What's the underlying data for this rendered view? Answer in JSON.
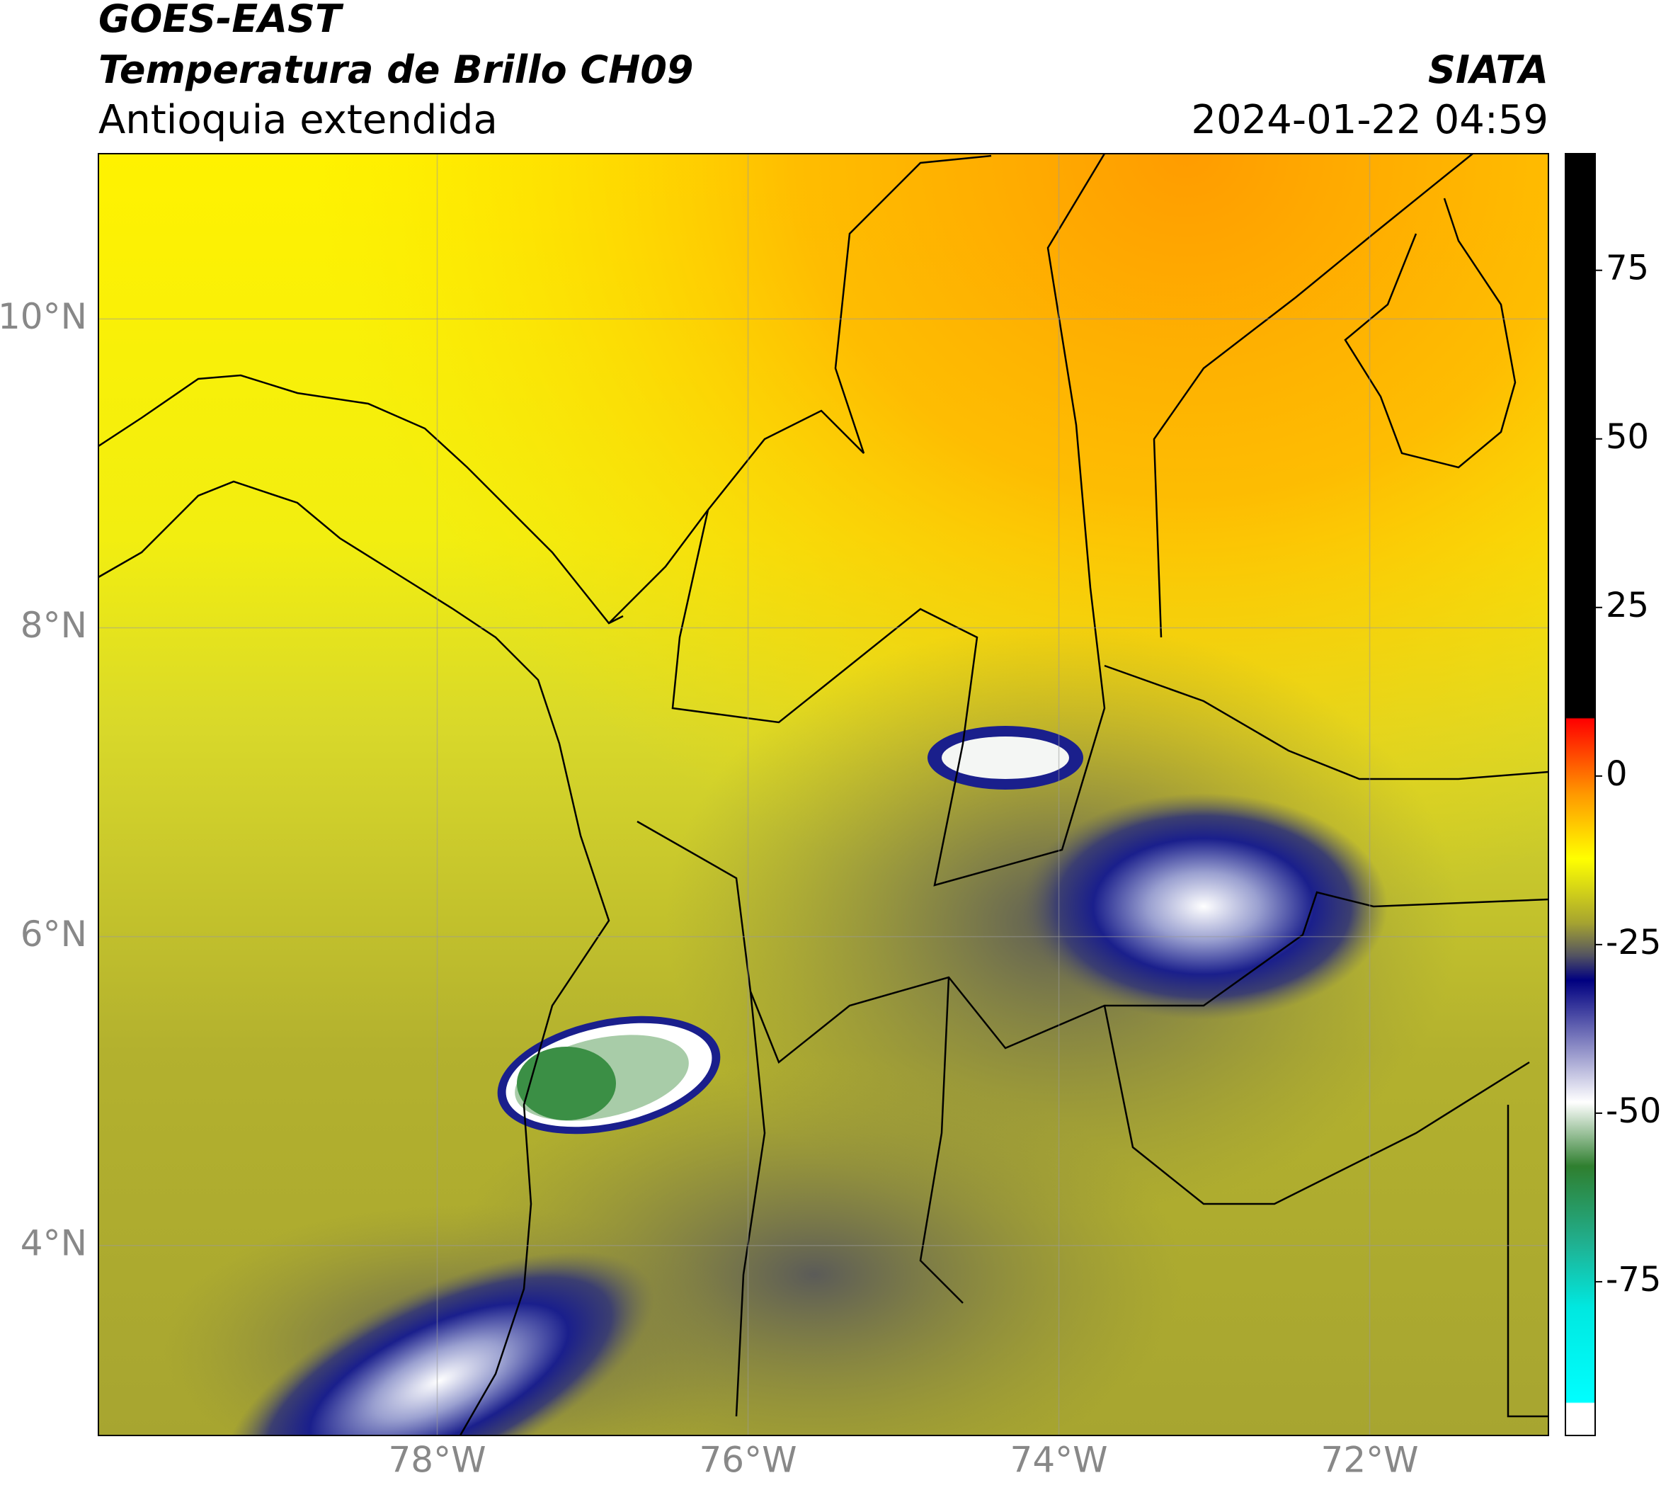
{
  "header": {
    "title": "GOES-EAST",
    "subtitle": "Temperatura de Brillo CH09",
    "region": "Antioquia extendida",
    "source": "SIATA",
    "timestamp": "2024-01-22 04:59"
  },
  "map": {
    "xlim": [
      -80.18,
      -70.85
    ],
    "ylim": [
      2.77,
      11.07
    ],
    "xticks": [
      {
        "value": -78,
        "label": "78°W"
      },
      {
        "value": -76,
        "label": "76°W"
      },
      {
        "value": -74,
        "label": "74°W"
      },
      {
        "value": -72,
        "label": "72°W"
      }
    ],
    "yticks": [
      {
        "value": 10,
        "label": "10°N"
      },
      {
        "value": 8,
        "label": "8°N"
      },
      {
        "value": 6,
        "label": "6°N"
      },
      {
        "value": 4,
        "label": "4°N"
      }
    ],
    "grid": true
  },
  "colorbar": {
    "lim": [
      -97.8,
      92.3
    ],
    "ticks": [
      75,
      50,
      25,
      0,
      -25,
      -50,
      -75
    ]
  }
}
